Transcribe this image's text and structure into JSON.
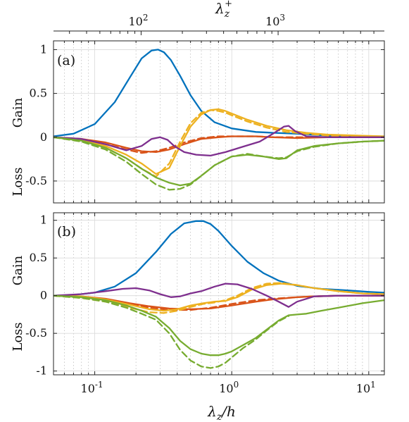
{
  "chart_data": [
    {
      "type": "line",
      "panel_label": "(a)",
      "gain_label": "Gain",
      "loss_label": "Loss",
      "x_scale": "log",
      "xlim": [
        0.05,
        13
      ],
      "ylim": [
        -0.75,
        1.1
      ],
      "yticks": [
        1,
        0.5,
        0,
        -0.5
      ],
      "ytick_labels": [
        "1",
        "0.5",
        "0",
        "-0.5"
      ],
      "top_axis": {
        "label_main": "λ",
        "label_sub": "z",
        "label_sup": "+",
        "scale": "log",
        "ticks": [
          {
            "base": "10",
            "exp": "2",
            "x_equiv": 0.218
          },
          {
            "base": "10",
            "exp": "3",
            "x_equiv": 2.18
          }
        ]
      },
      "grid": true,
      "series": [
        {
          "style": "solid",
          "color": "#0072BD",
          "x": [
            0.05,
            0.07,
            0.1,
            0.14,
            0.18,
            0.22,
            0.26,
            0.29,
            0.32,
            0.36,
            0.42,
            0.5,
            0.6,
            0.75,
            1.0,
            1.5,
            2.0,
            3.0,
            5.0,
            8.0,
            13.0
          ],
          "y": [
            0.01,
            0.04,
            0.15,
            0.4,
            0.68,
            0.9,
            0.99,
            1.0,
            0.97,
            0.88,
            0.7,
            0.48,
            0.3,
            0.17,
            0.1,
            0.06,
            0.05,
            0.04,
            0.02,
            0.01,
            0.01
          ]
        },
        {
          "style": "solid",
          "color": "#D95319",
          "x": [
            0.05,
            0.08,
            0.12,
            0.17,
            0.22,
            0.28,
            0.35,
            0.45,
            0.6,
            0.8,
            1.0,
            1.5,
            2.0,
            3.0,
            5.0,
            8.0,
            13.0
          ],
          "y": [
            0.0,
            -0.02,
            -0.06,
            -0.12,
            -0.16,
            -0.17,
            -0.14,
            -0.08,
            -0.02,
            0.0,
            0.01,
            0.01,
            0.0,
            -0.01,
            0.0,
            0.0,
            0.0
          ]
        },
        {
          "style": "dashed",
          "color": "#D95319",
          "x": [
            0.05,
            0.08,
            0.12,
            0.17,
            0.22,
            0.28,
            0.35,
            0.45,
            0.6,
            0.8,
            1.0,
            1.5,
            2.0,
            3.0,
            5.0,
            8.0,
            13.0
          ],
          "y": [
            0.0,
            -0.03,
            -0.08,
            -0.14,
            -0.18,
            -0.16,
            -0.12,
            -0.06,
            -0.01,
            0.01,
            0.01,
            0.01,
            0.0,
            0.0,
            0.0,
            0.0,
            0.0
          ]
        },
        {
          "style": "solid",
          "color": "#EDB120",
          "x": [
            0.05,
            0.08,
            0.12,
            0.17,
            0.22,
            0.28,
            0.35,
            0.42,
            0.5,
            0.6,
            0.7,
            0.8,
            0.9,
            1.0,
            1.3,
            1.8,
            2.5,
            3.5,
            5.0,
            8.0,
            13.0
          ],
          "y": [
            0.0,
            -0.03,
            -0.1,
            -0.2,
            -0.3,
            -0.42,
            -0.35,
            -0.1,
            0.12,
            0.26,
            0.31,
            0.32,
            0.3,
            0.27,
            0.2,
            0.13,
            0.08,
            0.05,
            0.03,
            0.02,
            0.01
          ]
        },
        {
          "style": "dashed",
          "color": "#EDB120",
          "x": [
            0.05,
            0.08,
            0.12,
            0.17,
            0.22,
            0.28,
            0.35,
            0.42,
            0.5,
            0.6,
            0.7,
            0.8,
            0.9,
            1.0,
            1.3,
            1.8,
            2.5,
            3.5,
            5.0,
            8.0,
            13.0
          ],
          "y": [
            0.0,
            -0.04,
            -0.12,
            -0.24,
            -0.36,
            -0.45,
            -0.3,
            -0.05,
            0.16,
            0.28,
            0.31,
            0.3,
            0.28,
            0.25,
            0.18,
            0.11,
            0.06,
            0.04,
            0.02,
            0.01,
            0.0
          ]
        },
        {
          "style": "solid",
          "color": "#7E2F8E",
          "x": [
            0.05,
            0.08,
            0.12,
            0.17,
            0.22,
            0.26,
            0.3,
            0.34,
            0.38,
            0.45,
            0.55,
            0.7,
            0.9,
            1.2,
            1.6,
            2.0,
            2.4,
            2.6,
            2.9,
            3.5,
            5.0,
            8.0,
            13.0
          ],
          "y": [
            0.0,
            -0.02,
            -0.08,
            -0.15,
            -0.1,
            -0.02,
            0.0,
            -0.03,
            -0.1,
            -0.17,
            -0.2,
            -0.21,
            -0.17,
            -0.11,
            -0.05,
            0.04,
            0.12,
            0.13,
            0.07,
            0.01,
            0.0,
            0.0,
            0.0
          ]
        },
        {
          "style": "solid",
          "color": "#77AC30",
          "x": [
            0.05,
            0.08,
            0.12,
            0.17,
            0.22,
            0.28,
            0.35,
            0.42,
            0.5,
            0.6,
            0.75,
            1.0,
            1.3,
            1.7,
            2.2,
            2.5,
            3.0,
            4.0,
            6.0,
            9.0,
            13.0
          ],
          "y": [
            0.0,
            -0.04,
            -0.12,
            -0.24,
            -0.36,
            -0.46,
            -0.52,
            -0.55,
            -0.53,
            -0.44,
            -0.32,
            -0.22,
            -0.2,
            -0.22,
            -0.25,
            -0.24,
            -0.15,
            -0.1,
            -0.07,
            -0.05,
            -0.04
          ]
        },
        {
          "style": "dashed",
          "color": "#77AC30",
          "x": [
            0.05,
            0.08,
            0.12,
            0.17,
            0.22,
            0.28,
            0.35,
            0.42,
            0.5,
            0.6,
            0.75,
            1.0,
            1.3,
            1.7,
            2.2,
            2.5,
            3.0,
            4.0,
            6.0,
            9.0,
            13.0
          ],
          "y": [
            0.0,
            -0.05,
            -0.14,
            -0.28,
            -0.42,
            -0.54,
            -0.6,
            -0.59,
            -0.54,
            -0.44,
            -0.32,
            -0.22,
            -0.19,
            -0.22,
            -0.24,
            -0.23,
            -0.16,
            -0.11,
            -0.07,
            -0.05,
            -0.04
          ]
        }
      ]
    },
    {
      "type": "line",
      "panel_label": "(b)",
      "gain_label": "Gain",
      "loss_label": "Loss",
      "x_scale": "log",
      "xlim": [
        0.05,
        13
      ],
      "ylim": [
        -1.05,
        1.1
      ],
      "yticks": [
        1,
        0.5,
        0,
        -0.5,
        -1
      ],
      "ytick_labels": [
        "1",
        "0.5",
        "0",
        "-0.5",
        "-1"
      ],
      "xticks": [
        {
          "base": "10",
          "exp": "-1",
          "value": 0.1
        },
        {
          "base": "10",
          "exp": "0",
          "value": 1
        },
        {
          "base": "10",
          "exp": "1",
          "value": 10
        }
      ],
      "xlabel_main": "λ",
      "xlabel_sub": "z",
      "xlabel_suffix": "/h",
      "grid": true,
      "series": [
        {
          "style": "solid",
          "color": "#0072BD",
          "x": [
            0.05,
            0.07,
            0.1,
            0.14,
            0.2,
            0.28,
            0.36,
            0.45,
            0.55,
            0.62,
            0.7,
            0.8,
            1.0,
            1.3,
            1.7,
            2.2,
            3.0,
            4.5,
            7.0,
            10.0,
            13.0
          ],
          "y": [
            0.0,
            0.01,
            0.04,
            0.12,
            0.3,
            0.58,
            0.82,
            0.96,
            0.99,
            0.99,
            0.95,
            0.86,
            0.66,
            0.45,
            0.3,
            0.2,
            0.13,
            0.09,
            0.07,
            0.05,
            0.04
          ]
        },
        {
          "style": "solid",
          "color": "#D95319",
          "x": [
            0.05,
            0.08,
            0.12,
            0.18,
            0.25,
            0.35,
            0.5,
            0.7,
            1.0,
            1.5,
            2.0,
            3.0,
            4.0,
            6.0,
            9.0,
            13.0
          ],
          "y": [
            0.0,
            -0.01,
            -0.04,
            -0.1,
            -0.14,
            -0.17,
            -0.18,
            -0.17,
            -0.13,
            -0.08,
            -0.05,
            -0.02,
            -0.01,
            0.0,
            0.0,
            0.0
          ]
        },
        {
          "style": "dashed",
          "color": "#D95319",
          "x": [
            0.05,
            0.08,
            0.12,
            0.18,
            0.25,
            0.35,
            0.5,
            0.7,
            1.0,
            1.5,
            2.0,
            3.0,
            4.0,
            6.0,
            9.0,
            13.0
          ],
          "y": [
            0.0,
            -0.02,
            -0.05,
            -0.11,
            -0.16,
            -0.19,
            -0.19,
            -0.16,
            -0.11,
            -0.06,
            -0.04,
            -0.02,
            -0.01,
            0.0,
            0.0,
            0.0
          ]
        },
        {
          "style": "solid",
          "color": "#EDB120",
          "x": [
            0.05,
            0.08,
            0.12,
            0.18,
            0.25,
            0.32,
            0.4,
            0.5,
            0.62,
            0.75,
            0.9,
            1.1,
            1.4,
            1.8,
            2.3,
            3.0,
            4.0,
            6.0,
            9.0,
            13.0
          ],
          "y": [
            0.0,
            -0.01,
            -0.05,
            -0.12,
            -0.18,
            -0.2,
            -0.18,
            -0.13,
            -0.1,
            -0.08,
            -0.07,
            -0.02,
            0.08,
            0.14,
            0.16,
            0.14,
            0.1,
            0.06,
            0.03,
            0.02
          ]
        },
        {
          "style": "dashed",
          "color": "#EDB120",
          "x": [
            0.05,
            0.08,
            0.12,
            0.18,
            0.25,
            0.32,
            0.4,
            0.5,
            0.62,
            0.75,
            0.9,
            1.1,
            1.4,
            1.8,
            2.3,
            3.0,
            4.0,
            6.0,
            9.0,
            13.0
          ],
          "y": [
            0.0,
            -0.03,
            -0.08,
            -0.16,
            -0.22,
            -0.23,
            -0.2,
            -0.15,
            -0.11,
            -0.09,
            -0.06,
            0.0,
            0.1,
            0.16,
            0.17,
            0.14,
            0.1,
            0.06,
            0.03,
            0.02
          ]
        },
        {
          "style": "solid",
          "color": "#7E2F8E",
          "x": [
            0.05,
            0.08,
            0.12,
            0.16,
            0.2,
            0.25,
            0.3,
            0.36,
            0.42,
            0.5,
            0.6,
            0.75,
            0.9,
            1.1,
            1.4,
            1.8,
            2.2,
            2.6,
            3.0,
            4.0,
            6.0,
            9.0,
            13.0
          ],
          "y": [
            0.0,
            0.02,
            0.06,
            0.09,
            0.1,
            0.07,
            0.02,
            -0.02,
            -0.01,
            0.03,
            0.06,
            0.12,
            0.16,
            0.15,
            0.09,
            0.0,
            -0.08,
            -0.15,
            -0.08,
            -0.01,
            0.0,
            0.0,
            0.0
          ]
        },
        {
          "style": "solid",
          "color": "#77AC30",
          "x": [
            0.05,
            0.08,
            0.12,
            0.17,
            0.22,
            0.28,
            0.35,
            0.42,
            0.5,
            0.6,
            0.7,
            0.8,
            0.9,
            1.0,
            1.2,
            1.5,
            1.8,
            2.2,
            2.6,
            3.0,
            3.5,
            4.5,
            6.0,
            9.0,
            13.0
          ],
          "y": [
            0.0,
            -0.02,
            -0.06,
            -0.13,
            -0.2,
            -0.28,
            -0.43,
            -0.6,
            -0.71,
            -0.77,
            -0.79,
            -0.79,
            -0.77,
            -0.74,
            -0.66,
            -0.56,
            -0.45,
            -0.33,
            -0.26,
            -0.25,
            -0.24,
            -0.2,
            -0.16,
            -0.1,
            -0.06
          ]
        },
        {
          "style": "dashed",
          "color": "#77AC30",
          "x": [
            0.05,
            0.08,
            0.12,
            0.17,
            0.22,
            0.28,
            0.35,
            0.42,
            0.5,
            0.6,
            0.7,
            0.8,
            0.9,
            1.0,
            1.2,
            1.5,
            1.8,
            2.2,
            2.6
          ],
          "y": [
            0.0,
            -0.03,
            -0.08,
            -0.16,
            -0.24,
            -0.32,
            -0.5,
            -0.72,
            -0.86,
            -0.94,
            -0.96,
            -0.94,
            -0.89,
            -0.82,
            -0.7,
            -0.58,
            -0.46,
            -0.34,
            -0.27
          ]
        }
      ]
    }
  ]
}
